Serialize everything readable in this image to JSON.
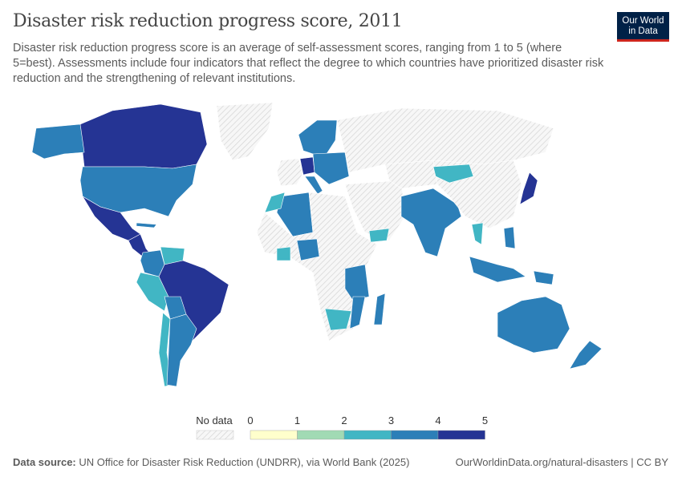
{
  "header": {
    "title": "Disaster risk reduction progress score, 2011",
    "subtitle": "Disaster risk reduction progress score is an average of self-assessment scores, ranging from 1 to 5 (where 5=best). Assessments include four indicators that reflect the degree to which countries have prioritized disaster risk reduction and the strengthening of relevant institutions.",
    "logo_line1": "Our World",
    "logo_line2": "in Data"
  },
  "legend": {
    "no_data_label": "No data",
    "ticks": [
      "0",
      "1",
      "2",
      "3",
      "4",
      "5"
    ],
    "bins": [
      {
        "range": [
          0,
          1
        ],
        "color": "#ffffcc"
      },
      {
        "range": [
          1,
          2
        ],
        "color": "#a1dab4"
      },
      {
        "range": [
          2,
          3
        ],
        "color": "#41b6c4"
      },
      {
        "range": [
          3,
          4
        ],
        "color": "#2c7fb8"
      },
      {
        "range": [
          4,
          5
        ],
        "color": "#253494"
      }
    ],
    "no_data_color": "#e8e8e8"
  },
  "footer": {
    "source_label": "Data source:",
    "source_text": "UN Office for Disaster Risk Reduction (UNDRR), via World Bank (2025)",
    "link": "OurWorldinData.org/natural-disasters | CC BY"
  },
  "chart_data": {
    "type": "map",
    "year": 2011,
    "regions": [
      {
        "name": "Canada",
        "value": 4.5
      },
      {
        "name": "United States",
        "value": 3.5
      },
      {
        "name": "Alaska",
        "value": 3.5
      },
      {
        "name": "Greenland",
        "value": null
      },
      {
        "name": "Mexico",
        "value": 4.5
      },
      {
        "name": "Central America",
        "value": 4.5
      },
      {
        "name": "Cuba",
        "value": 3.5
      },
      {
        "name": "Colombia",
        "value": 3.5
      },
      {
        "name": "Venezuela",
        "value": 2.5
      },
      {
        "name": "Brazil",
        "value": 4.5
      },
      {
        "name": "Peru",
        "value": 2.5
      },
      {
        "name": "Bolivia",
        "value": 3.5
      },
      {
        "name": "Chile",
        "value": 2.5
      },
      {
        "name": "Argentina",
        "value": 3.5
      },
      {
        "name": "Scandinavia",
        "value": 3.5
      },
      {
        "name": "Western Europe",
        "value": null
      },
      {
        "name": "Germany",
        "value": 4.5
      },
      {
        "name": "Italy",
        "value": 3.5
      },
      {
        "name": "Eastern Europe",
        "value": 3.5
      },
      {
        "name": "Russia",
        "value": null
      },
      {
        "name": "Algeria",
        "value": 3.5
      },
      {
        "name": "Morocco",
        "value": 2.5
      },
      {
        "name": "Africa (other)",
        "value": null
      },
      {
        "name": "Nigeria",
        "value": 3.5
      },
      {
        "name": "Ghana",
        "value": 2.5
      },
      {
        "name": "East Africa",
        "value": 3.5
      },
      {
        "name": "Mozambique",
        "value": 3.5
      },
      {
        "name": "South Africa",
        "value": 2.5
      },
      {
        "name": "Madagascar",
        "value": 3.5
      },
      {
        "name": "Middle East",
        "value": null
      },
      {
        "name": "Yemen",
        "value": 2.5
      },
      {
        "name": "Central Asia",
        "value": null
      },
      {
        "name": "India",
        "value": 3.5
      },
      {
        "name": "China",
        "value": null
      },
      {
        "name": "Mongolia",
        "value": 2.5
      },
      {
        "name": "Japan",
        "value": 4.5
      },
      {
        "name": "Thailand",
        "value": 2.5
      },
      {
        "name": "Philippines",
        "value": 3.5
      },
      {
        "name": "Indonesia",
        "value": 3.5
      },
      {
        "name": "Papua New Guinea",
        "value": 3.5
      },
      {
        "name": "Australia",
        "value": 3.5
      },
      {
        "name": "New Zealand",
        "value": 3.5
      }
    ]
  }
}
